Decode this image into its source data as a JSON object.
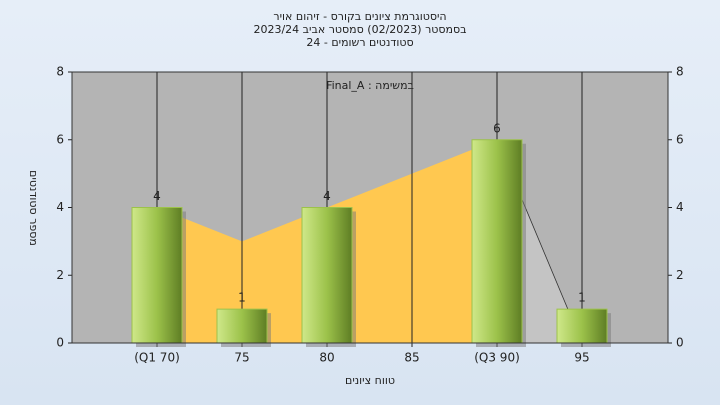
{
  "chart_data": {
    "type": "bar",
    "title": "היסטוגרמת ציונים בקורס - זיהום אויר",
    "subtitle": [
      "בסמסטר  (02/2023)  סמסטר אביב 2023/24",
      "סטודנטים רשומים - 24"
    ],
    "annotation": "Final_A : במשימה",
    "x_label": "טווח ציונים",
    "y_label": "מספר סטודנטים",
    "categories": [
      "(Q1 70)",
      "75",
      "80",
      "85",
      "(Q3 90)",
      "95"
    ],
    "values": [
      4,
      1,
      4,
      null,
      6,
      1
    ],
    "area_values": [
      4,
      3,
      4,
      5,
      6,
      0
    ],
    "color": "#9cc24a",
    "area_color": "#ffc850",
    "ylim": [
      0,
      8
    ],
    "yticks": [
      0,
      2,
      4,
      6,
      8
    ],
    "grid": true
  }
}
